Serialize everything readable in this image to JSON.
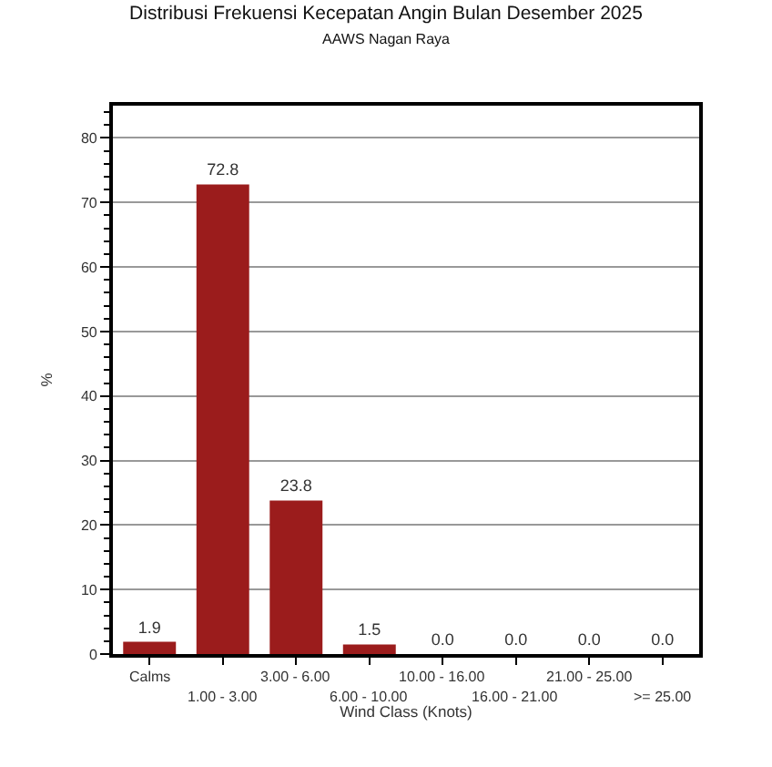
{
  "chart_data": {
    "type": "bar",
    "title": "Distribusi Frekuensi Kecepatan Angin Bulan Desember 2025",
    "subtitle": "AAWS Nagan Raya",
    "xlabel": "Wind Class (Knots)",
    "ylabel": "%",
    "categories": [
      "Calms",
      "1.00 - 3.00",
      "3.00 - 6.00",
      "6.00 - 10.00",
      "10.00 - 16.00",
      "16.00 - 21.00",
      "21.00 - 25.00",
      ">= 25.00"
    ],
    "values": [
      1.9,
      72.8,
      23.8,
      1.5,
      0.0,
      0.0,
      0.0,
      0.0
    ],
    "value_labels": [
      "1.9",
      "72.8",
      "23.8",
      "1.5",
      "0.0",
      "0.0",
      "0.0",
      "0.0"
    ],
    "color": "#9b1c1c",
    "ylim": [
      0,
      85
    ],
    "yticks": [
      0,
      10,
      20,
      30,
      40,
      50,
      60,
      70,
      80
    ],
    "grid": "y"
  }
}
